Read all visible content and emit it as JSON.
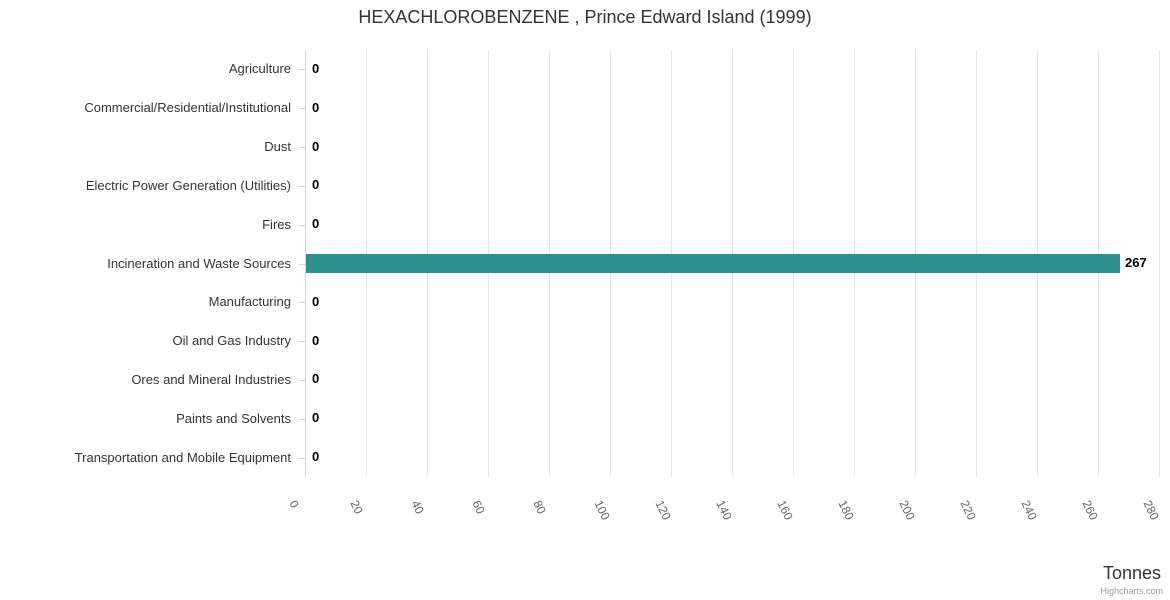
{
  "chart_data": {
    "type": "bar",
    "orientation": "horizontal",
    "title": "HEXACHLOROBENZENE , Prince Edward Island (1999)",
    "categories": [
      "Agriculture",
      "Commercial/Residential/Institutional",
      "Dust",
      "Electric Power Generation (Utilities)",
      "Fires",
      "Incineration and Waste Sources",
      "Manufacturing",
      "Oil and Gas Industry",
      "Ores and Mineral Industries",
      "Paints and Solvents",
      "Transportation and Mobile Equipment"
    ],
    "values": [
      0,
      0,
      0,
      0,
      0,
      267,
      0,
      0,
      0,
      0,
      0
    ],
    "data_labels": [
      "0",
      "0",
      "0",
      "0",
      "0",
      "267",
      "0",
      "0",
      "0",
      "0",
      "0"
    ],
    "xlabel": "Tonnes",
    "ylabel": "",
    "value_axis": {
      "min": 0,
      "max": 280,
      "tick_interval": 20,
      "tick_labels": [
        "0",
        "20",
        "40",
        "60",
        "80",
        "100",
        "120",
        "140",
        "160",
        "180",
        "200",
        "220",
        "240",
        "260",
        "280"
      ],
      "tick_label_rotation_deg": 64,
      "grid": true
    },
    "legend": "none",
    "credit": "Highcharts.com",
    "colors": {
      "background": "#ffffff",
      "bar": "#2e918f",
      "grid_line": "#e6e6e6",
      "axis_line": "#ccd6eb",
      "title_text": "#333333",
      "category_label": "#333333",
      "tick_label": "#666666",
      "data_label": "#000000",
      "axis_title_text": "#333333",
      "credit_text": "#999999"
    }
  }
}
